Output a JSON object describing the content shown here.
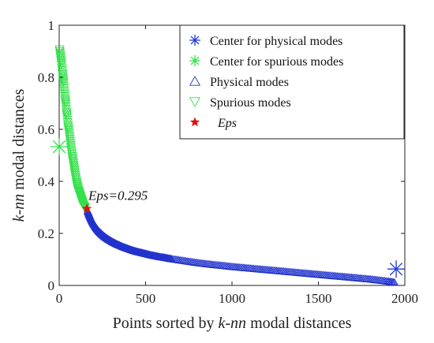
{
  "chart_data": {
    "type": "scatter",
    "xlabel": {
      "pre": "Points sorted by ",
      "em": "k-nn",
      "post": " modal distances"
    },
    "ylabel": {
      "em": "k-nn",
      "post": " modal distances"
    },
    "xlim": [
      0,
      2000
    ],
    "ylim": [
      0,
      1
    ],
    "xticks": [
      {
        "value": 0,
        "label": "0"
      },
      {
        "value": 500,
        "label": "500"
      },
      {
        "value": 1000,
        "label": "1000"
      },
      {
        "value": 1500,
        "label": "1500"
      },
      {
        "value": 2000,
        "label": "2000"
      }
    ],
    "yticks": [
      {
        "value": 0,
        "label": "0"
      },
      {
        "value": 0.2,
        "label": "0.2"
      },
      {
        "value": 0.4,
        "label": "0.4"
      },
      {
        "value": 0.6,
        "label": "0.6"
      },
      {
        "value": 0.8,
        "label": "0.8"
      },
      {
        "value": 1,
        "label": "1"
      }
    ],
    "grid": false,
    "legend_position": "top-right",
    "series": [
      {
        "name": "Center for physical modes",
        "marker": "asterisk",
        "color": "#1f3bd6",
        "points": [
          [
            1950,
            0.063
          ]
        ]
      },
      {
        "name": "Center for spurious modes",
        "marker": "asterisk",
        "color": "#33e04a",
        "points": [
          [
            0,
            0.533
          ]
        ]
      },
      {
        "name": "Physical modes",
        "marker": "triangle-up",
        "color": "#2233cc",
        "points": [
          [
            165,
            0.285
          ],
          [
            175,
            0.268
          ],
          [
            185,
            0.253
          ],
          [
            195,
            0.24
          ],
          [
            205,
            0.229
          ],
          [
            215,
            0.219
          ],
          [
            225,
            0.21
          ],
          [
            240,
            0.199
          ],
          [
            255,
            0.19
          ],
          [
            270,
            0.182
          ],
          [
            290,
            0.173
          ],
          [
            310,
            0.165
          ],
          [
            330,
            0.158
          ],
          [
            350,
            0.152
          ],
          [
            375,
            0.145
          ],
          [
            400,
            0.139
          ],
          [
            425,
            0.133
          ],
          [
            450,
            0.128
          ],
          [
            475,
            0.124
          ],
          [
            500,
            0.12
          ],
          [
            530,
            0.115
          ],
          [
            560,
            0.111
          ],
          [
            590,
            0.107
          ],
          [
            620,
            0.104
          ],
          [
            650,
            0.1
          ],
          [
            700,
            0.095
          ],
          [
            750,
            0.09
          ],
          [
            800,
            0.085
          ],
          [
            850,
            0.081
          ],
          [
            900,
            0.077
          ],
          [
            950,
            0.074
          ],
          [
            1000,
            0.07
          ],
          [
            1050,
            0.067
          ],
          [
            1100,
            0.064
          ],
          [
            1150,
            0.061
          ],
          [
            1200,
            0.058
          ],
          [
            1250,
            0.055
          ],
          [
            1300,
            0.052
          ],
          [
            1350,
            0.049
          ],
          [
            1400,
            0.046
          ],
          [
            1450,
            0.043
          ],
          [
            1500,
            0.04
          ],
          [
            1550,
            0.037
          ],
          [
            1600,
            0.034
          ],
          [
            1650,
            0.031
          ],
          [
            1700,
            0.028
          ],
          [
            1750,
            0.025
          ],
          [
            1800,
            0.022
          ],
          [
            1850,
            0.018
          ],
          [
            1900,
            0.014
          ],
          [
            1940,
            0.01
          ]
        ]
      },
      {
        "name": "Spurious modes",
        "marker": "triangle-down",
        "color": "#33e04a",
        "points": [
          [
            2,
            0.91
          ],
          [
            6,
            0.89
          ],
          [
            10,
            0.87
          ],
          [
            14,
            0.85
          ],
          [
            18,
            0.82
          ],
          [
            22,
            0.8
          ],
          [
            26,
            0.78
          ],
          [
            30,
            0.75
          ],
          [
            34,
            0.72
          ],
          [
            38,
            0.7
          ],
          [
            42,
            0.67
          ],
          [
            46,
            0.65
          ],
          [
            50,
            0.62
          ],
          [
            55,
            0.6
          ],
          [
            60,
            0.575
          ],
          [
            65,
            0.55
          ],
          [
            70,
            0.525
          ],
          [
            75,
            0.5
          ],
          [
            80,
            0.48
          ],
          [
            85,
            0.46
          ],
          [
            90,
            0.44
          ],
          [
            95,
            0.42
          ],
          [
            100,
            0.4
          ],
          [
            105,
            0.385
          ],
          [
            110,
            0.37
          ],
          [
            115,
            0.36
          ],
          [
            120,
            0.35
          ],
          [
            125,
            0.34
          ],
          [
            130,
            0.33
          ],
          [
            135,
            0.32
          ],
          [
            140,
            0.31
          ],
          [
            145,
            0.305
          ],
          [
            150,
            0.3
          ]
        ]
      },
      {
        "name": "Eps",
        "marker": "star",
        "color": "#dd1111",
        "points": [
          [
            160,
            0.295
          ]
        ]
      }
    ],
    "annotations": [
      {
        "text": "Eps=0.295",
        "x": 160,
        "y": 0.295
      }
    ]
  }
}
